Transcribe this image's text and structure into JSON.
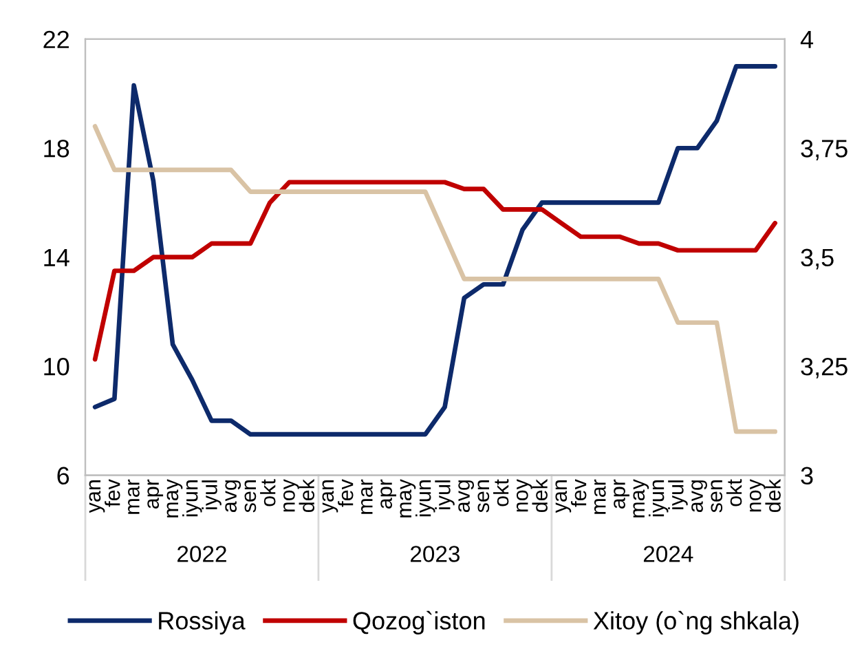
{
  "chart_data": {
    "type": "line",
    "categories": [
      "yan",
      "fev",
      "mar",
      "apr",
      "may",
      "iyun",
      "iyul",
      "avg",
      "sen",
      "okt",
      "noy",
      "dek",
      "yan",
      "fev",
      "mar",
      "apr",
      "may",
      "iyun",
      "iyul",
      "avg",
      "sen",
      "okt",
      "noy",
      "dek",
      "yan",
      "fev",
      "mar",
      "apr",
      "may",
      "iyun",
      "iyul",
      "avg",
      "sen",
      "okt",
      "noy",
      "dek"
    ],
    "series": [
      {
        "name": "Rossiya",
        "color": "#0d2a6b",
        "values": [
          8.5,
          8.8,
          20.3,
          16.8,
          10.8,
          9.5,
          8.0,
          8.0,
          7.5,
          7.5,
          7.5,
          7.5,
          7.5,
          7.5,
          7.5,
          7.5,
          7.5,
          7.5,
          8.5,
          12.5,
          13.0,
          13.0,
          15.0,
          16.0,
          16.0,
          16.0,
          16.0,
          16.0,
          16.0,
          16.0,
          18.0,
          18.0,
          19.0,
          21.0,
          21.0,
          21.0
        ]
      },
      {
        "name": "Qozog`iston",
        "color": "#c00000",
        "values": [
          10.25,
          13.5,
          13.5,
          14.0,
          14.0,
          14.0,
          14.5,
          14.5,
          14.5,
          16.0,
          16.75,
          16.75,
          16.75,
          16.75,
          16.75,
          16.75,
          16.75,
          16.75,
          16.75,
          16.5,
          16.5,
          15.75,
          15.75,
          15.75,
          15.25,
          14.75,
          14.75,
          14.75,
          14.5,
          14.5,
          14.25,
          14.25,
          14.25,
          14.25,
          14.25,
          15.25
        ]
      },
      {
        "name": "Xitoy (o`ng shkala)",
        "color": "#d9c3a5",
        "axis": "y2",
        "values": [
          3.8,
          3.7,
          3.7,
          3.7,
          3.7,
          3.7,
          3.7,
          3.7,
          3.65,
          3.65,
          3.65,
          3.65,
          3.65,
          3.65,
          3.65,
          3.65,
          3.65,
          3.65,
          3.55,
          3.45,
          3.45,
          3.45,
          3.45,
          3.45,
          3.45,
          3.45,
          3.45,
          3.45,
          3.45,
          3.45,
          3.35,
          3.35,
          3.35,
          3.1,
          3.1,
          3.1
        ]
      }
    ],
    "ylim": [
      6,
      22
    ],
    "yticks": [
      6,
      10,
      14,
      18,
      22
    ],
    "y2lim": [
      3,
      4
    ],
    "y2ticks": [
      3,
      {
        "value": 3.25,
        "label": "3,25"
      },
      {
        "value": 3.5,
        "label": "3,5"
      },
      {
        "value": 3.75,
        "label": "3,75"
      },
      4
    ],
    "annotations": [
      "2022",
      "2023",
      "2024"
    ],
    "grid": false,
    "legend": "bottom",
    "line_style": "solid",
    "marker": "none"
  }
}
